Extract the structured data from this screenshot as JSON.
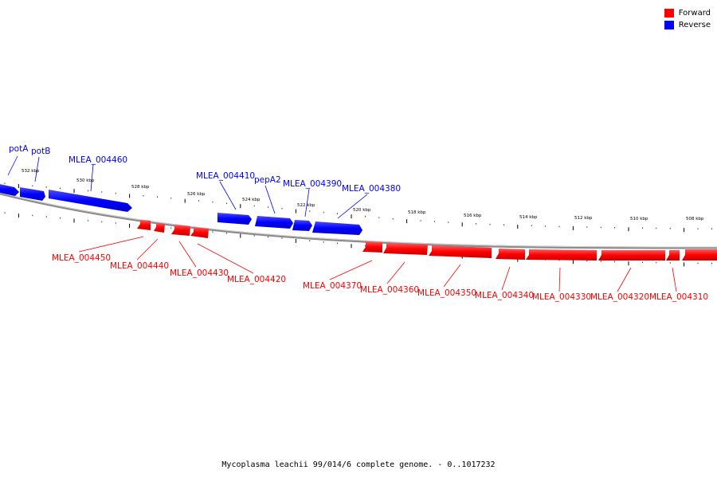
{
  "legend": {
    "forward": {
      "label": "Forward",
      "color": "#ff0000"
    },
    "reverse": {
      "label": "Reverse",
      "color": "#0000ff"
    }
  },
  "caption": "Mycoplasma leachii 99/014/6 complete genome. - 0..1017232",
  "scale_labels": [
    "532 kbp",
    "530 kbp",
    "528 kbp",
    "526 kbp",
    "524 kbp",
    "522 kbp",
    "520 kbp",
    "518 kbp",
    "516 kbp",
    "514 kbp",
    "512 kbp",
    "510 kbp",
    "508 kbp"
  ],
  "reverse_genes": [
    "potA",
    "potB",
    "MLEA_004460",
    "MLEA_004410",
    "pepA2",
    "MLEA_004390",
    "MLEA_004380"
  ],
  "forward_genes": [
    "MLEA_004450",
    "MLEA_004440",
    "MLEA_004430",
    "MLEA_004420",
    "MLEA_004370",
    "MLEA_004360",
    "MLEA_004350",
    "MLEA_004340",
    "MLEA_004330",
    "MLEA_004320",
    "MLEA_004310"
  ]
}
